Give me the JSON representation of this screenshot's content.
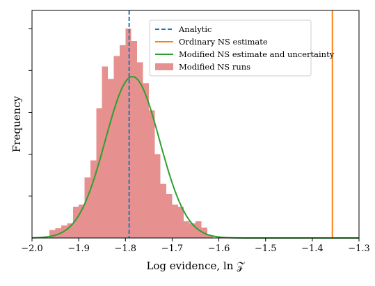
{
  "chart_data": {
    "type": "histogram",
    "xlabel": "Log evidence, ln 𝒵",
    "ylabel": "Frequency",
    "xlim": [
      -2.0,
      -1.3
    ],
    "ylim": [
      0,
      1.0
    ],
    "x_ticks": [
      -2.0,
      -1.9,
      -1.8,
      -1.7,
      -1.6,
      -1.5,
      -1.4,
      -1.3
    ],
    "x_tick_labels": [
      "−2.0",
      "−1.9",
      "−1.8",
      "−1.7",
      "−1.6",
      "−1.5",
      "−1.4",
      "−1.3"
    ],
    "y_ticks": [
      0.2,
      0.4,
      0.6,
      0.8,
      1.0
    ],
    "histogram": {
      "name": "Modified NS runs",
      "color": "#e6908f",
      "bin_width": 0.0125,
      "bin_starts": [
        -1.9625,
        -1.95,
        -1.9375,
        -1.925,
        -1.9125,
        -1.9,
        -1.8875,
        -1.875,
        -1.8625,
        -1.85,
        -1.8375,
        -1.825,
        -1.8125,
        -1.8,
        -1.7875,
        -1.775,
        -1.7625,
        -1.75,
        -1.7375,
        -1.725,
        -1.7125,
        -1.7,
        -1.6875,
        -1.675,
        -1.6625,
        -1.65,
        -1.6375,
        -1.625
      ],
      "counts": [
        0.039,
        0.046,
        0.06,
        0.07,
        0.15,
        0.16,
        0.29,
        0.37,
        0.62,
        0.82,
        0.76,
        0.87,
        0.92,
        1.0,
        0.94,
        0.84,
        0.74,
        0.61,
        0.4,
        0.26,
        0.21,
        0.16,
        0.15,
        0.08,
        0.07,
        0.08,
        0.05,
        0.014
      ]
    },
    "analytic": {
      "name": "Analytic",
      "x": -1.792,
      "color": "#1f77b4"
    },
    "ordinary": {
      "name": "Ordinary NS estimate",
      "x": -1.357,
      "color": "#ff7f0e"
    },
    "modified": {
      "name": "Modified NS estimate and uncertainty",
      "mean": -1.785,
      "sd": 0.058,
      "peak": 0.771,
      "color": "#2ca02c"
    },
    "legend_position": "upper-center"
  }
}
